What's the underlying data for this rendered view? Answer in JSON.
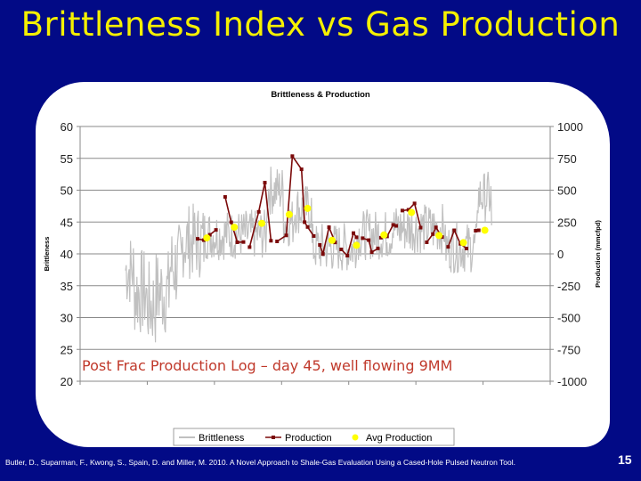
{
  "slide": {
    "title": "Brittleness Index  vs Gas Production",
    "citation": "Butler, D., Suparman, F., Kwong, S., Spain, D. and Miller, M. 2010. A Novel Approach to Shale-Gas Evaluation Using a Cased-Hole Pulsed Neutron Tool.",
    "page_number": "15",
    "annotation": "Post Frac Production Log – day 45, well flowing 9MM",
    "colors": {
      "background": "#020a86",
      "title": "#f5f000",
      "brittleness": "#c0c0c0",
      "production": "#7b0a0a",
      "avg_production": "#ffff00",
      "annotation": "#c0392b"
    }
  },
  "chart_data": {
    "type": "line",
    "title": "Brittleness & Production",
    "ylabel": "Brittleness",
    "y2label": "Production (mmcfpd)",
    "xlabel": "",
    "ylim": [
      20,
      60
    ],
    "y2lim": [
      -1000,
      1000
    ],
    "yticks": [
      20,
      25,
      30,
      35,
      40,
      45,
      50,
      55,
      60
    ],
    "y2ticks": [
      -1000,
      -750,
      -500,
      -250,
      0,
      250,
      500,
      750,
      1000
    ],
    "grid": true,
    "legend": {
      "position": "bottom",
      "entries": [
        "Brittleness",
        "Production",
        "Avg Production"
      ]
    },
    "series": [
      {
        "name": "Brittleness",
        "axis": "left",
        "style": "gray-noisy-line",
        "approx_envelope": {
          "x_index_range": [
            0,
            100
          ],
          "start_mean": 38,
          "low_zone_min": 25.7,
          "mid_mean": 43,
          "peak_max": 56.3,
          "end_spike": 53
        }
      },
      {
        "name": "Production",
        "axis": "right",
        "style": "dark-red-line-square-markers",
        "segments": [
          [
            [
              0,
              118
            ],
            [
              2,
              108
            ],
            [
              4,
              150
            ],
            [
              6,
              188
            ]
          ],
          [
            [
              9,
              447
            ],
            [
              11,
              248
            ],
            [
              13,
              91
            ],
            [
              15,
              93
            ]
          ],
          [
            [
              17,
              53
            ],
            [
              20,
              330
            ],
            [
              22,
              559
            ],
            [
              24,
              103
            ]
          ],
          [
            [
              26,
              98
            ],
            [
              29,
              145
            ],
            [
              31,
              767
            ],
            [
              34,
              664
            ],
            [
              35,
              249
            ],
            [
              36,
              211
            ],
            [
              38,
              140
            ]
          ],
          [
            [
              40,
              70
            ],
            [
              41,
              -1
            ],
            [
              43,
              209
            ],
            [
              45,
              90
            ]
          ],
          [
            [
              47,
              35
            ],
            [
              49,
              -14
            ],
            [
              51,
              163
            ],
            [
              52,
              130
            ]
          ],
          [
            [
              54,
              123
            ],
            [
              56,
              108
            ],
            [
              57,
              13
            ],
            [
              59,
              43
            ]
          ],
          [
            [
              60,
              127
            ],
            [
              62,
              137
            ],
            [
              64,
              228
            ],
            [
              65,
              220
            ]
          ],
          [
            [
              67,
              340
            ],
            [
              69,
              346
            ],
            [
              71,
              396
            ],
            [
              73,
              206
            ]
          ],
          [
            [
              75,
              91
            ],
            [
              77,
              155
            ],
            [
              78,
              208
            ],
            [
              80,
              132
            ]
          ],
          [
            [
              82,
              55
            ],
            [
              84,
              185
            ],
            [
              86,
              79
            ],
            [
              88,
              42
            ]
          ],
          [
            [
              91,
              182
            ],
            [
              92,
              185
            ]
          ]
        ]
      },
      {
        "name": "Avg Production",
        "axis": "right",
        "style": "yellow-dots",
        "points": [
          [
            3,
            125
          ],
          [
            12,
            209
          ],
          [
            21,
            240
          ],
          [
            30,
            309
          ],
          [
            36,
            357
          ],
          [
            44,
            106
          ],
          [
            52,
            67
          ],
          [
            61,
            148
          ],
          [
            70,
            325
          ],
          [
            79,
            144
          ],
          [
            87,
            88
          ],
          [
            94,
            185
          ]
        ]
      }
    ]
  }
}
